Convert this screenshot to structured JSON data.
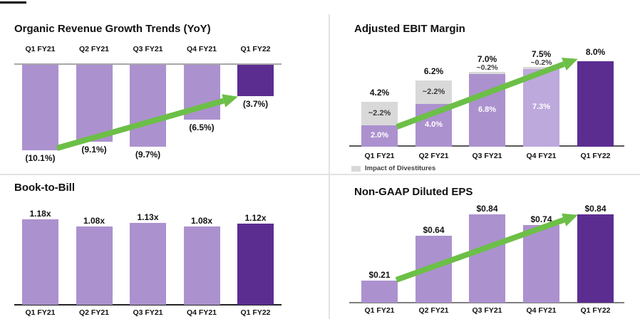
{
  "colors": {
    "bar_light_purple": "#AC91CF",
    "bar_light_purple_alt": "#BDA9DC",
    "bar_dark_purple": "#5C2D91",
    "divestiture_gray": "#D9D9D9",
    "arrow_green": "#6CBF47"
  },
  "chart_data": [
    {
      "type": "bar",
      "title": "Organic Revenue Growth Trends (YoY)",
      "orientation": "down-from-zero-axis",
      "categories": [
        "Q1 FY21",
        "Q2 FY21",
        "Q3 FY21",
        "Q4 FY21",
        "Q1 FY22"
      ],
      "values": [
        -10.1,
        -9.1,
        -9.7,
        -6.5,
        -3.7
      ],
      "value_labels": [
        "(10.1%)",
        "(9.1%)",
        "(9.7%)",
        "(6.5%)",
        "(3.7%)"
      ],
      "bar_colors": [
        "light",
        "light",
        "light",
        "light",
        "dark"
      ],
      "unit": "%",
      "ylim": [
        -11,
        0
      ],
      "grid": false,
      "trend_arrow": true
    },
    {
      "type": "stacked-bar",
      "title": "Adjusted EBIT Margin",
      "categories": [
        "Q1 FY21",
        "Q2 FY21",
        "Q3 FY21",
        "Q4 FY21",
        "Q1 FY22"
      ],
      "series": [
        {
          "name": "Adjusted EBIT Margin",
          "values": [
            2.0,
            4.0,
            6.8,
            7.3,
            8.0
          ],
          "labels": [
            "2.0%",
            "4.0%",
            "6.8%",
            "7.3%",
            ""
          ]
        },
        {
          "name": "Impact of Divestitures",
          "values": [
            2.2,
            2.2,
            0.2,
            0.2,
            0
          ],
          "labels": [
            "~2.2%",
            "~2.2%",
            "~0.2%",
            "~0.2%",
            ""
          ]
        }
      ],
      "total_labels": [
        "4.2%",
        "6.2%",
        "7.0%",
        "7.5%",
        "8.0%"
      ],
      "legend_label": "Impact of Divestitures",
      "bar_colors": [
        "light",
        "light",
        "light",
        "light_alt",
        "dark"
      ],
      "unit": "%",
      "ylim": [
        0,
        9
      ],
      "grid": false,
      "legend_position": "bottom-left",
      "trend_arrow": true
    },
    {
      "type": "bar",
      "title": "Book-to-Bill",
      "categories": [
        "Q1 FY21",
        "Q2 FY21",
        "Q3 FY21",
        "Q4 FY21",
        "Q1 FY22"
      ],
      "values": [
        1.18,
        1.08,
        1.13,
        1.08,
        1.12
      ],
      "value_labels": [
        "1.18x",
        "1.08x",
        "1.13x",
        "1.08x",
        "1.12x"
      ],
      "bar_colors": [
        "light",
        "light",
        "light",
        "light",
        "dark"
      ],
      "unit": "x",
      "ylim": [
        0,
        1.3
      ],
      "grid": false,
      "trend_arrow": false
    },
    {
      "type": "bar",
      "title": "Non-GAAP Diluted EPS",
      "categories": [
        "Q1 FY21",
        "Q2 FY21",
        "Q3 FY21",
        "Q4 FY21",
        "Q1 FY22"
      ],
      "values": [
        0.21,
        0.64,
        0.84,
        0.74,
        0.84
      ],
      "value_labels": [
        "$0.21",
        "$0.64",
        "$0.84",
        "$0.74",
        "$0.84"
      ],
      "bar_colors": [
        "light",
        "light",
        "light",
        "light",
        "dark"
      ],
      "unit": "$",
      "ylim": [
        0,
        0.95
      ],
      "grid": false,
      "trend_arrow": true
    }
  ]
}
